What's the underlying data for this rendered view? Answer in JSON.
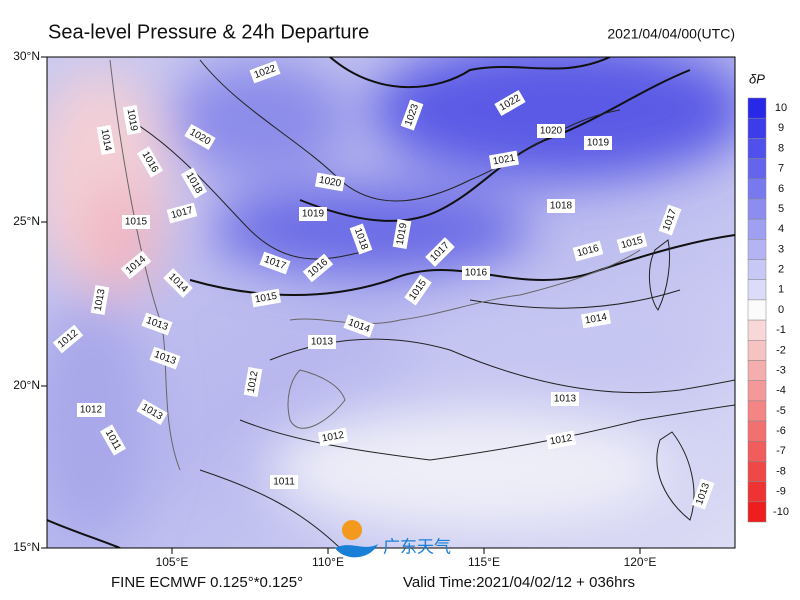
{
  "header": {
    "title": "Sea-level Pressure & 24h Departure",
    "time": "2021/04/04/00(UTC)"
  },
  "map": {
    "lat_labels": [
      "30°N",
      "25°N",
      "20°N",
      "15°N"
    ],
    "lon_labels": [
      "105°E",
      "110°E",
      "115°E",
      "120°E"
    ],
    "isobar_labels": [
      1022,
      1023,
      1022,
      1020,
      1019,
      1021,
      1020,
      1019,
      1018,
      1019,
      1017,
      1018,
      1016,
      1015,
      1017,
      1016,
      1017,
      1016,
      1015,
      1015,
      1014,
      1014,
      1013,
      1013,
      1012,
      1012,
      1012,
      1011,
      1013,
      1020,
      1018,
      1017,
      1015,
      1014,
      1014,
      1013,
      1013,
      1012,
      1012,
      1013,
      1011,
      1013,
      1019,
      1014,
      1016
    ]
  },
  "colorbar": {
    "title": "δP",
    "labels": [
      "10",
      "9",
      "8",
      "7",
      "6",
      "5",
      "4",
      "3",
      "2",
      "1",
      "0",
      "-1",
      "-2",
      "-3",
      "-4",
      "-5",
      "-6",
      "-7",
      "-8",
      "-9",
      "-10"
    ]
  },
  "footer": {
    "model": "FINE ECMWF 0.125°*0.125°",
    "valid": "Valid Time:2021/04/02/12 + 036hrs"
  },
  "logo": {
    "text": "广东天气"
  }
}
